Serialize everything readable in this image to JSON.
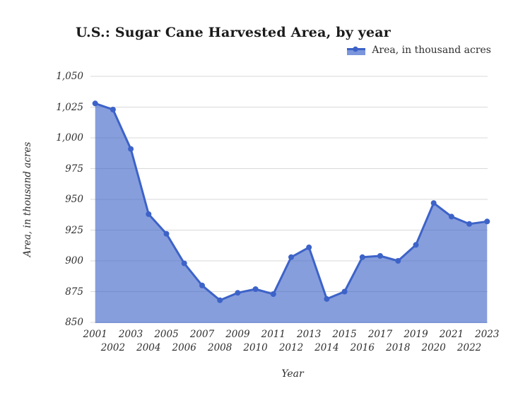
{
  "title": "U.S.: Sugar Cane Harvested Area, by year",
  "legend": {
    "label": "Area, in thousand acres"
  },
  "axes": {
    "x_title": "Year",
    "y_title": "Area, in thousand acres"
  },
  "colors": {
    "line": "#3d63c8",
    "fill": "rgba(61,99,200,0.62)",
    "fill_solid": "#7b96dc",
    "grid": "#d9d9d9",
    "text": "#2e2e2e",
    "title_text": "#1b1b1b"
  },
  "chart_data": {
    "type": "area",
    "title": "U.S.: Sugar Cane Harvested Area, by year",
    "xlabel": "Year",
    "ylabel": "Area, in thousand acres",
    "legend_position": "top-right",
    "grid": true,
    "ylim": [
      850,
      1050
    ],
    "y_ticks": [
      850,
      875,
      900,
      925,
      950,
      975,
      1000,
      1025,
      1050
    ],
    "x": [
      2001,
      2002,
      2003,
      2004,
      2005,
      2006,
      2007,
      2008,
      2009,
      2010,
      2011,
      2012,
      2013,
      2014,
      2015,
      2016,
      2017,
      2018,
      2019,
      2020,
      2021,
      2022,
      2023
    ],
    "series": [
      {
        "name": "Area, in thousand acres",
        "values": [
          1028,
          1023,
          991,
          938,
          922,
          898,
          880,
          868,
          874,
          877,
          873,
          903,
          911,
          869,
          875,
          903,
          904,
          900,
          913,
          947,
          936,
          930,
          932
        ]
      }
    ]
  }
}
